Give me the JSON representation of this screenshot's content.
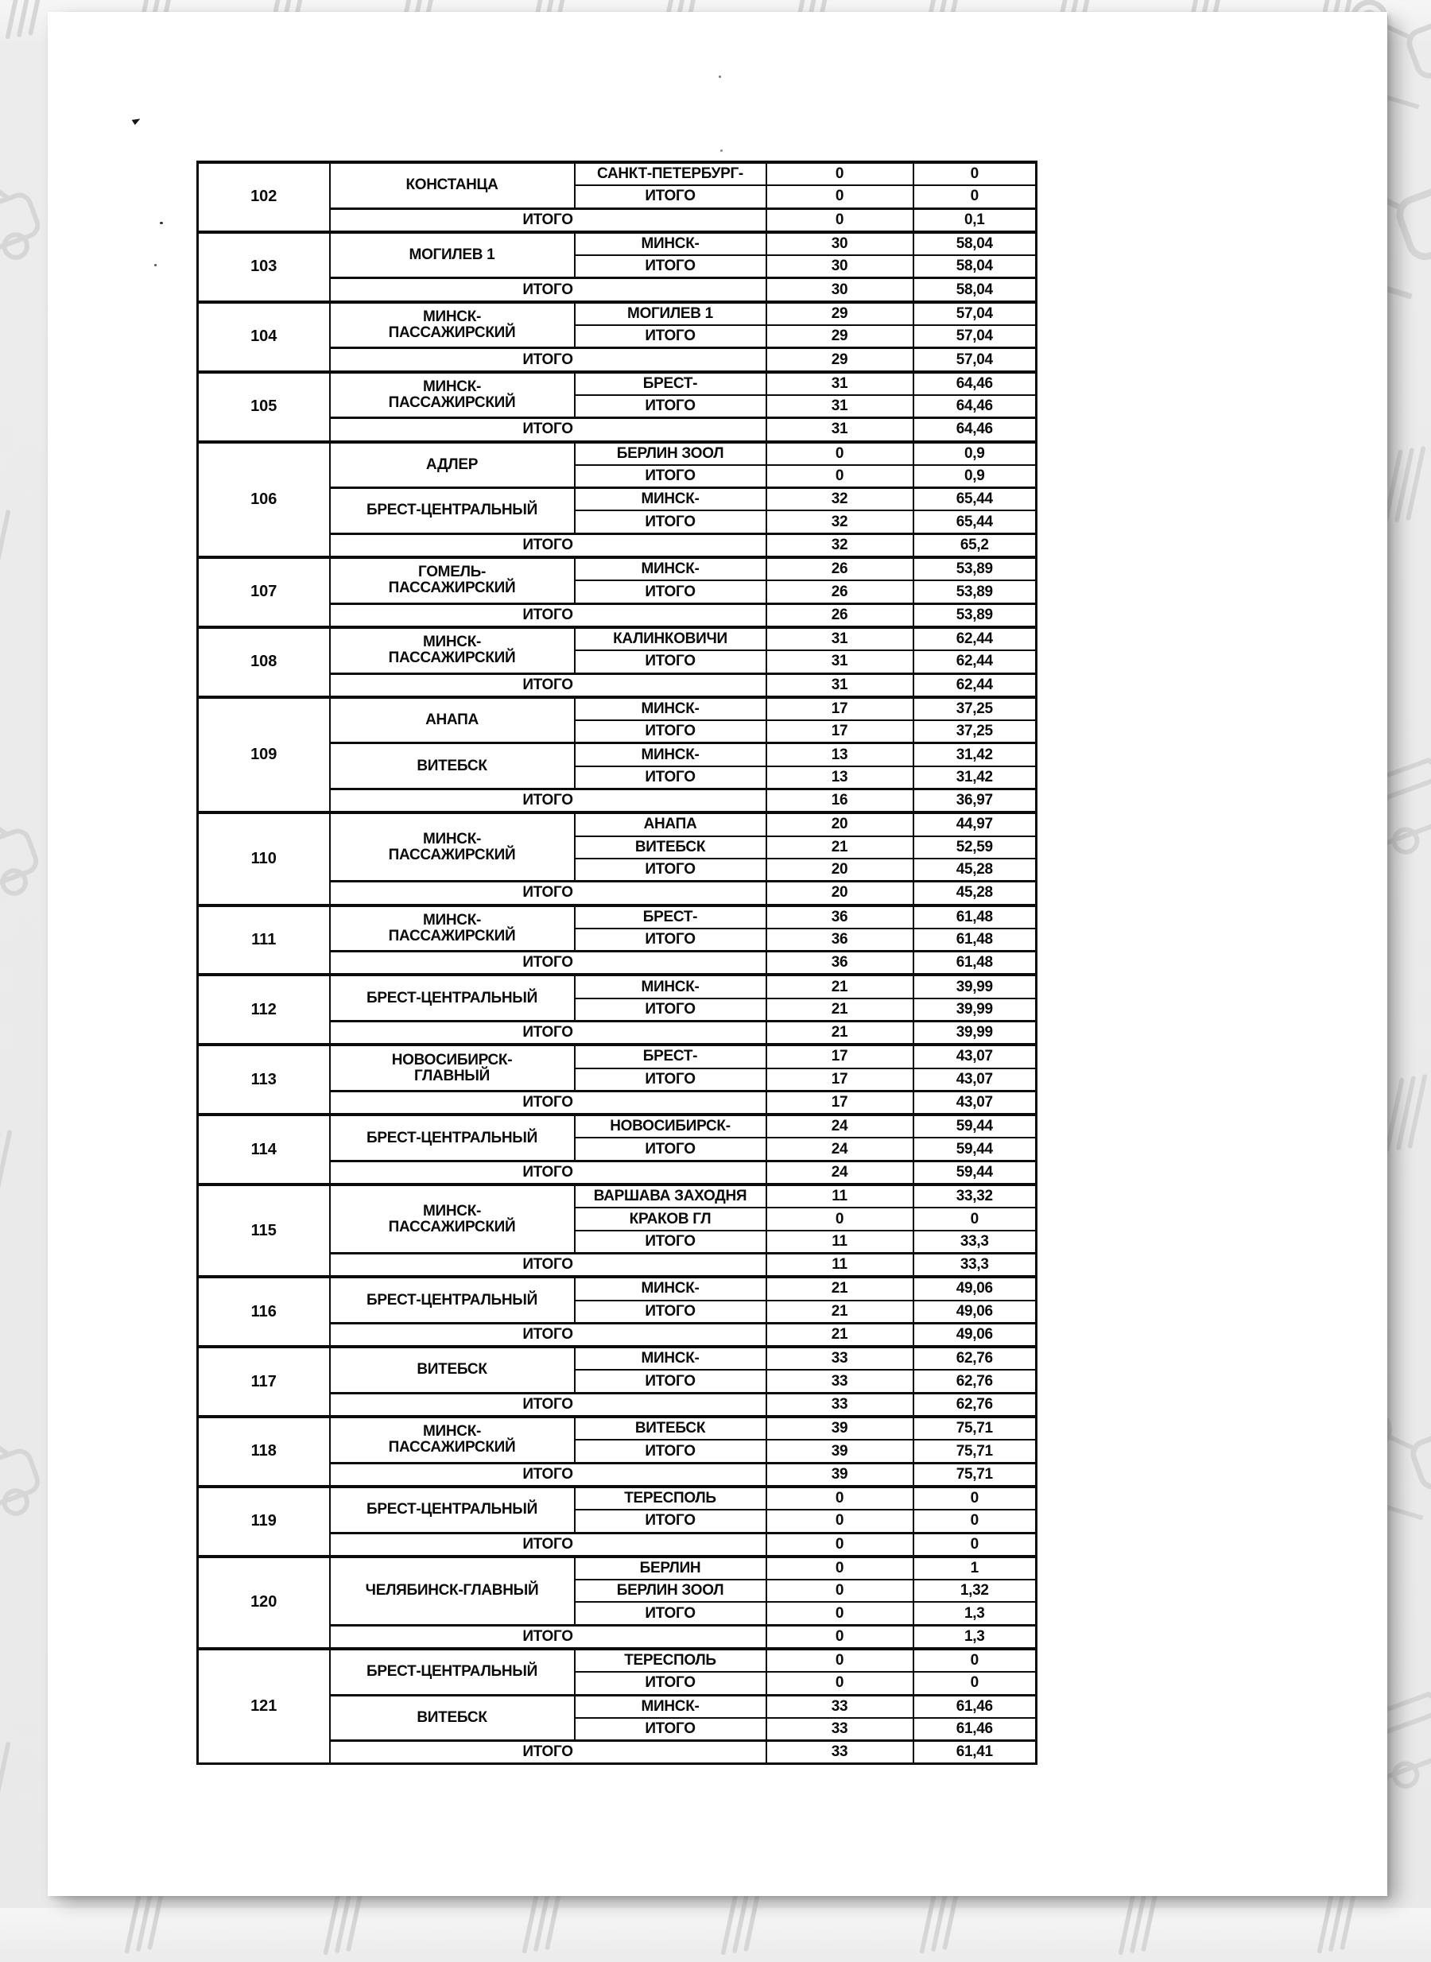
{
  "colors": {
    "paper": "#ffffff",
    "background": "#ebebeb",
    "table_ink": "#0c0c0c",
    "doodle_watermark": "#d6d6d6"
  },
  "table": {
    "blocks": [
      {
        "id": "102",
        "groups": [
          {
            "station_lines": [
              "КОНСТАНЦА"
            ],
            "rows": [
              {
                "dest": "САНКТ-ПЕТЕРБУРГ-",
                "count": "0",
                "value": "0"
              },
              {
                "dest": "ИТОГО",
                "count": "0",
                "value": "0"
              }
            ]
          }
        ],
        "total": {
          "label": "ИТОГО",
          "count": "0",
          "value": "0,1"
        }
      },
      {
        "id": "103",
        "groups": [
          {
            "station_lines": [
              "МОГИЛЕВ 1"
            ],
            "rows": [
              {
                "dest": "МИНСК-",
                "count": "30",
                "value": "58,04"
              },
              {
                "dest": "ИТОГО",
                "count": "30",
                "value": "58,04"
              }
            ]
          }
        ],
        "total": {
          "label": "ИТОГО",
          "count": "30",
          "value": "58,04"
        }
      },
      {
        "id": "104",
        "groups": [
          {
            "station_lines": [
              "МИНСК-",
              "ПАССАЖИРСКИЙ"
            ],
            "rows": [
              {
                "dest": "МОГИЛЕВ 1",
                "count": "29",
                "value": "57,04"
              },
              {
                "dest": "ИТОГО",
                "count": "29",
                "value": "57,04"
              }
            ]
          }
        ],
        "total": {
          "label": "ИТОГО",
          "count": "29",
          "value": "57,04"
        }
      },
      {
        "id": "105",
        "groups": [
          {
            "station_lines": [
              "МИНСК-",
              "ПАССАЖИРСКИЙ"
            ],
            "rows": [
              {
                "dest": "БРЕСТ-",
                "count": "31",
                "value": "64,46"
              },
              {
                "dest": "ИТОГО",
                "count": "31",
                "value": "64,46"
              }
            ]
          }
        ],
        "total": {
          "label": "ИТОГО",
          "count": "31",
          "value": "64,46"
        }
      },
      {
        "id": "106",
        "groups": [
          {
            "station_lines": [
              "АДЛЕР"
            ],
            "rows": [
              {
                "dest": "БЕРЛИН ЗООЛ",
                "count": "0",
                "value": "0,9"
              },
              {
                "dest": "ИТОГО",
                "count": "0",
                "value": "0,9"
              }
            ]
          },
          {
            "station_lines": [
              "БРЕСТ-ЦЕНТРАЛЬНЫЙ"
            ],
            "rows": [
              {
                "dest": "МИНСК-",
                "count": "32",
                "value": "65,44"
              },
              {
                "dest": "ИТОГО",
                "count": "32",
                "value": "65,44"
              }
            ]
          }
        ],
        "total": {
          "label": "ИТОГО",
          "count": "32",
          "value": "65,2"
        }
      },
      {
        "id": "107",
        "groups": [
          {
            "station_lines": [
              "ГОМЕЛЬ-",
              "ПАССАЖИРСКИЙ"
            ],
            "rows": [
              {
                "dest": "МИНСК-",
                "count": "26",
                "value": "53,89"
              },
              {
                "dest": "ИТОГО",
                "count": "26",
                "value": "53,89"
              }
            ]
          }
        ],
        "total": {
          "label": "ИТОГО",
          "count": "26",
          "value": "53,89"
        }
      },
      {
        "id": "108",
        "groups": [
          {
            "station_lines": [
              "МИНСК-",
              "ПАССАЖИРСКИЙ"
            ],
            "rows": [
              {
                "dest": "КАЛИНКОВИЧИ",
                "count": "31",
                "value": "62,44"
              },
              {
                "dest": "ИТОГО",
                "count": "31",
                "value": "62,44"
              }
            ]
          }
        ],
        "total": {
          "label": "ИТОГО",
          "count": "31",
          "value": "62,44"
        }
      },
      {
        "id": "109",
        "groups": [
          {
            "station_lines": [
              "АНАПА"
            ],
            "rows": [
              {
                "dest": "МИНСК-",
                "count": "17",
                "value": "37,25"
              },
              {
                "dest": "ИТОГО",
                "count": "17",
                "value": "37,25"
              }
            ]
          },
          {
            "station_lines": [
              "ВИТЕБСК"
            ],
            "rows": [
              {
                "dest": "МИНСК-",
                "count": "13",
                "value": "31,42"
              },
              {
                "dest": "ИТОГО",
                "count": "13",
                "value": "31,42"
              }
            ]
          }
        ],
        "total": {
          "label": "ИТОГО",
          "count": "16",
          "value": "36,97"
        }
      },
      {
        "id": "110",
        "groups": [
          {
            "station_lines": [
              "МИНСК-",
              "ПАССАЖИРСКИЙ"
            ],
            "rows": [
              {
                "dest": "АНАПА",
                "count": "20",
                "value": "44,97"
              },
              {
                "dest": "ВИТЕБСК",
                "count": "21",
                "value": "52,59"
              },
              {
                "dest": "ИТОГО",
                "count": "20",
                "value": "45,28"
              }
            ]
          }
        ],
        "total": {
          "label": "ИТОГО",
          "count": "20",
          "value": "45,28"
        }
      },
      {
        "id": "111",
        "groups": [
          {
            "station_lines": [
              "МИНСК-",
              "ПАССАЖИРСКИЙ"
            ],
            "rows": [
              {
                "dest": "БРЕСТ-",
                "count": "36",
                "value": "61,48"
              },
              {
                "dest": "ИТОГО",
                "count": "36",
                "value": "61,48"
              }
            ]
          }
        ],
        "total": {
          "label": "ИТОГО",
          "count": "36",
          "value": "61,48"
        }
      },
      {
        "id": "112",
        "groups": [
          {
            "station_lines": [
              "БРЕСТ-ЦЕНТРАЛЬНЫЙ"
            ],
            "rows": [
              {
                "dest": "МИНСК-",
                "count": "21",
                "value": "39,99"
              },
              {
                "dest": "ИТОГО",
                "count": "21",
                "value": "39,99"
              }
            ]
          }
        ],
        "total": {
          "label": "ИТОГО",
          "count": "21",
          "value": "39,99"
        }
      },
      {
        "id": "113",
        "groups": [
          {
            "station_lines": [
              "НОВОСИБИРСК-",
              "ГЛАВНЫЙ"
            ],
            "rows": [
              {
                "dest": "БРЕСТ-",
                "count": "17",
                "value": "43,07"
              },
              {
                "dest": "ИТОГО",
                "count": "17",
                "value": "43,07"
              }
            ]
          }
        ],
        "total": {
          "label": "ИТОГО",
          "count": "17",
          "value": "43,07"
        }
      },
      {
        "id": "114",
        "groups": [
          {
            "station_lines": [
              "БРЕСТ-ЦЕНТРАЛЬНЫЙ"
            ],
            "rows": [
              {
                "dest": "НОВОСИБИРСК-",
                "count": "24",
                "value": "59,44"
              },
              {
                "dest": "ИТОГО",
                "count": "24",
                "value": "59,44"
              }
            ]
          }
        ],
        "total": {
          "label": "ИТОГО",
          "count": "24",
          "value": "59,44"
        }
      },
      {
        "id": "115",
        "groups": [
          {
            "station_lines": [
              "МИНСК-",
              "ПАССАЖИРСКИЙ"
            ],
            "rows": [
              {
                "dest": "ВАРШАВА ЗАХОДНЯ",
                "count": "11",
                "value": "33,32"
              },
              {
                "dest": "КРАКОВ ГЛ",
                "count": "0",
                "value": "0"
              },
              {
                "dest": "ИТОГО",
                "count": "11",
                "value": "33,3"
              }
            ]
          }
        ],
        "total": {
          "label": "ИТОГО",
          "count": "11",
          "value": "33,3"
        }
      },
      {
        "id": "116",
        "groups": [
          {
            "station_lines": [
              "БРЕСТ-ЦЕНТРАЛЬНЫЙ"
            ],
            "rows": [
              {
                "dest": "МИНСК-",
                "count": "21",
                "value": "49,06"
              },
              {
                "dest": "ИТОГО",
                "count": "21",
                "value": "49,06"
              }
            ]
          }
        ],
        "total": {
          "label": "ИТОГО",
          "count": "21",
          "value": "49,06"
        }
      },
      {
        "id": "117",
        "groups": [
          {
            "station_lines": [
              "ВИТЕБСК"
            ],
            "rows": [
              {
                "dest": "МИНСК-",
                "count": "33",
                "value": "62,76"
              },
              {
                "dest": "ИТОГО",
                "count": "33",
                "value": "62,76"
              }
            ]
          }
        ],
        "total": {
          "label": "ИТОГО",
          "count": "33",
          "value": "62,76"
        }
      },
      {
        "id": "118",
        "groups": [
          {
            "station_lines": [
              "МИНСК-",
              "ПАССАЖИРСКИЙ"
            ],
            "rows": [
              {
                "dest": "ВИТЕБСК",
                "count": "39",
                "value": "75,71"
              },
              {
                "dest": "ИТОГО",
                "count": "39",
                "value": "75,71"
              }
            ]
          }
        ],
        "total": {
          "label": "ИТОГО",
          "count": "39",
          "value": "75,71"
        }
      },
      {
        "id": "119",
        "groups": [
          {
            "station_lines": [
              "БРЕСТ-ЦЕНТРАЛЬНЫЙ"
            ],
            "rows": [
              {
                "dest": "ТЕРЕСПОЛЬ",
                "count": "0",
                "value": "0"
              },
              {
                "dest": "ИТОГО",
                "count": "0",
                "value": "0"
              }
            ]
          }
        ],
        "total": {
          "label": "ИТОГО",
          "count": "0",
          "value": "0"
        }
      },
      {
        "id": "120",
        "groups": [
          {
            "station_lines": [
              "ЧЕЛЯБИНСК-ГЛАВНЫЙ"
            ],
            "rows": [
              {
                "dest": "БЕРЛИН",
                "count": "0",
                "value": "1"
              },
              {
                "dest": "БЕРЛИН ЗООЛ",
                "count": "0",
                "value": "1,32"
              },
              {
                "dest": "ИТОГО",
                "count": "0",
                "value": "1,3"
              }
            ]
          }
        ],
        "total": {
          "label": "ИТОГО",
          "count": "0",
          "value": "1,3"
        }
      },
      {
        "id": "121",
        "groups": [
          {
            "station_lines": [
              "БРЕСТ-ЦЕНТРАЛЬНЫЙ"
            ],
            "rows": [
              {
                "dest": "ТЕРЕСПОЛЬ",
                "count": "0",
                "value": "0"
              },
              {
                "dest": "ИТОГО",
                "count": "0",
                "value": "0"
              }
            ]
          },
          {
            "station_lines": [
              "ВИТЕБСК"
            ],
            "rows": [
              {
                "dest": "МИНСК-",
                "count": "33",
                "value": "61,46"
              },
              {
                "dest": "ИТОГО",
                "count": "33",
                "value": "61,46"
              }
            ]
          }
        ],
        "total": {
          "label": "ИТОГО",
          "count": "33",
          "value": "61,41"
        }
      }
    ]
  }
}
